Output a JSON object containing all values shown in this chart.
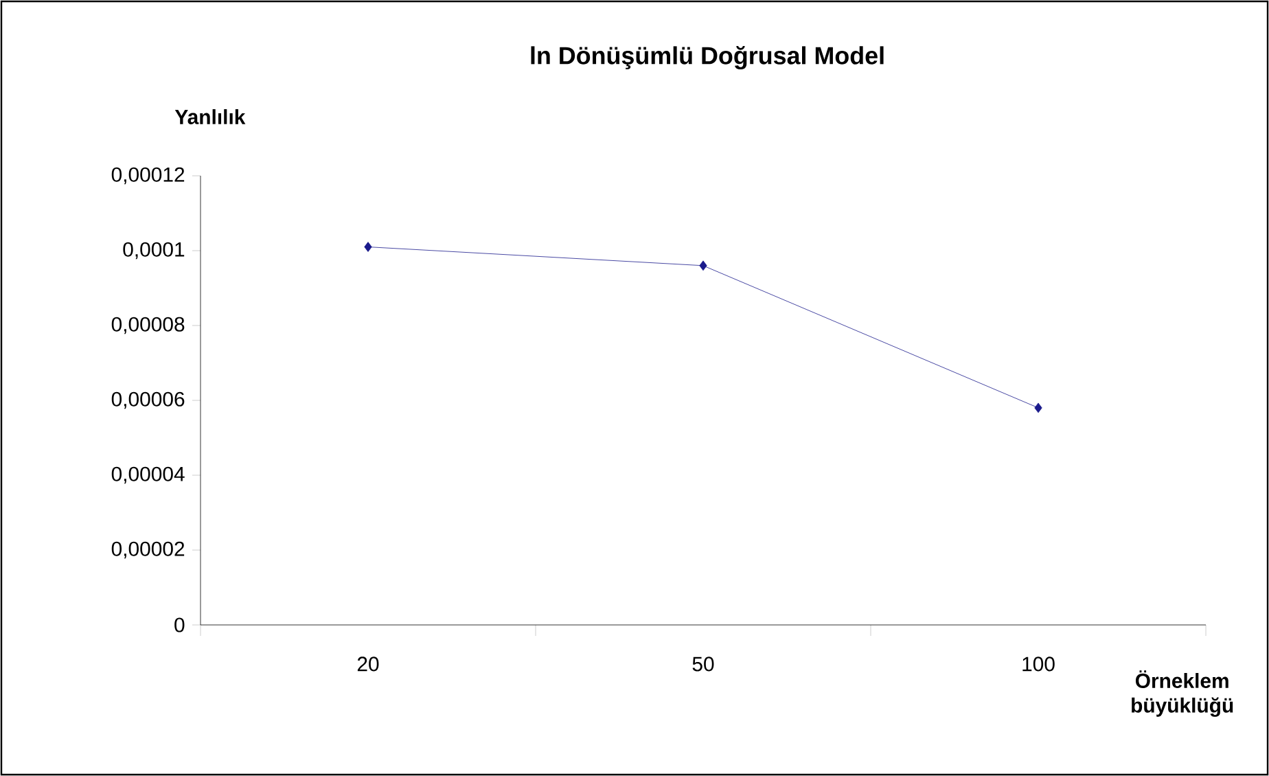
{
  "chart_data": {
    "type": "line",
    "title": "ln Dönüşümlü Doğrusal Model",
    "ylabel": "Yanlılık",
    "xlabel": "Örneklem büyüklüğü",
    "categories": [
      "20",
      "50",
      "100"
    ],
    "series": [
      {
        "color": "#1a1a8c",
        "values": [
          0.000101,
          9.6e-05,
          5.8e-05
        ]
      }
    ],
    "ylim": [
      0,
      0.00012
    ],
    "yticks": [
      0,
      {
        "value": 2e-05,
        "label": "0,00002"
      },
      {
        "value": 4e-05,
        "label": "0,00004"
      },
      {
        "value": 6e-05,
        "label": "0,00006"
      },
      {
        "value": 8e-05,
        "label": "0,00008"
      },
      {
        "value": 0.0001,
        "label": "0,0001"
      },
      {
        "value": 0.00012,
        "label": "0,00012"
      }
    ],
    "grid": false,
    "marker": "diamond",
    "line_style": "solid"
  }
}
